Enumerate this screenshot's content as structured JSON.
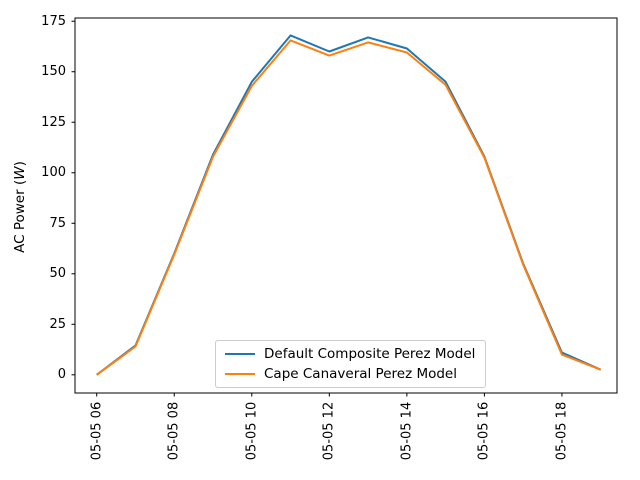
{
  "figure": {
    "background": "#ffffff",
    "axis_color": "#000000",
    "legend_border_color": "#cccccc"
  },
  "chart_data": {
    "type": "line",
    "title": "",
    "xlabel": "",
    "ylabel": "AC Power (W)",
    "ylabel_parts": {
      "pre": "AC Power (",
      "unit": "W",
      "post": ")"
    },
    "grid": false,
    "legend_position": "lower center",
    "x_hours": [
      6,
      7,
      8,
      9,
      10,
      11,
      12,
      13,
      14,
      15,
      16,
      17,
      18,
      19
    ],
    "x_tick_hours": [
      6,
      8,
      10,
      12,
      14,
      16,
      18
    ],
    "x_tick_labels": [
      "05-05 06",
      "05-05 08",
      "05-05 10",
      "05-05 12",
      "05-05 14",
      "05-05 16",
      "05-05 18"
    ],
    "y_ticks": [
      0,
      25,
      50,
      75,
      100,
      125,
      150,
      175
    ],
    "ylim": [
      -9,
      176.5
    ],
    "series": [
      {
        "name": "Default Composite Perez Model",
        "color": "#1f77b4",
        "values": [
          0,
          14.5,
          60,
          109,
          145,
          168,
          160,
          167,
          161.5,
          145,
          108,
          55,
          11,
          2.5
        ]
      },
      {
        "name": "Cape Canaveral Perez Model",
        "color": "#ff7f0e",
        "values": [
          0,
          14,
          59.5,
          108,
          143,
          165.5,
          158,
          164.5,
          159.5,
          143.5,
          107.5,
          54.5,
          10,
          2.5
        ]
      }
    ]
  }
}
